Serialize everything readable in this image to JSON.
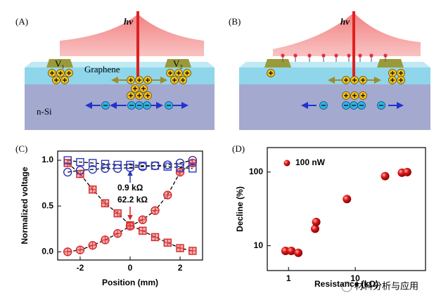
{
  "diagrams": {
    "A": {
      "label": "(A)",
      "light": "hv",
      "left_electrode": "V₁",
      "right_electrode": "V₂",
      "top_layer": "Graphene",
      "substrate": "n-Si"
    },
    "B": {
      "label": "(B)",
      "light": "hv"
    }
  },
  "panel_labels": {
    "C": "(C)",
    "D": "(D)"
  },
  "watermark": "材料分析与应用",
  "chart_data": [
    {
      "type": "line",
      "xlabel": "Position (mm)",
      "ylabel": "Normalized voltage",
      "x": [
        -2.5,
        -2,
        -1.5,
        -1,
        -0.5,
        0,
        0.5,
        1,
        1.5,
        2,
        2.5
      ],
      "series": [
        {
          "color": "#d62728",
          "marker": "square",
          "values": [
            0.97,
            0.85,
            0.68,
            0.53,
            0.42,
            0.29,
            0.23,
            0.16,
            0.1,
            0.04,
            0.01
          ]
        },
        {
          "color": "#d62728",
          "marker": "circle",
          "values": [
            0,
            0.02,
            0.07,
            0.13,
            0.2,
            0.28,
            0.35,
            0.45,
            0.62,
            0.87,
            0.97
          ]
        },
        {
          "color": "#2b35b5",
          "marker": "square",
          "values": [
            1.0,
            0.98,
            0.97,
            0.96,
            0.95,
            0.95,
            0.94,
            0.94,
            0.93,
            0.92,
            0.91
          ]
        },
        {
          "color": "#2b35b5",
          "marker": "circle",
          "values": [
            0.87,
            0.89,
            0.9,
            0.91,
            0.91,
            0.92,
            0.93,
            0.94,
            0.95,
            0.97,
            1.0
          ]
        }
      ],
      "annotations": [
        "0.9 kΩ",
        "62.2 kΩ"
      ],
      "xlim": [
        -2.9,
        2.9
      ],
      "xticks": [
        -2,
        0,
        2
      ],
      "ylim": [
        -0.09,
        1.1
      ],
      "yticks": [
        {
          "value": 0,
          "label": "0.0"
        },
        0.5,
        {
          "value": 1,
          "label": "1.0"
        }
      ]
    },
    {
      "type": "scatter",
      "xlabel": "Resistance (kΩ)",
      "ylabel": "Decline (%)",
      "xscale": "log",
      "yscale": "log",
      "series": [
        {
          "name": "100 nW",
          "color": "#e01818",
          "x": [
            0.9,
            1.1,
            1.4,
            2.5,
            2.6,
            7.5,
            28,
            50,
            60
          ],
          "values": [
            8.5,
            8.5,
            8,
            17,
            21,
            43,
            88,
            98,
            100
          ]
        }
      ],
      "xlim": [
        0.48,
        113
      ],
      "xticks": [
        1,
        10
      ],
      "ylim": [
        4.6,
        215
      ],
      "yticks": [
        10,
        100
      ]
    }
  ]
}
